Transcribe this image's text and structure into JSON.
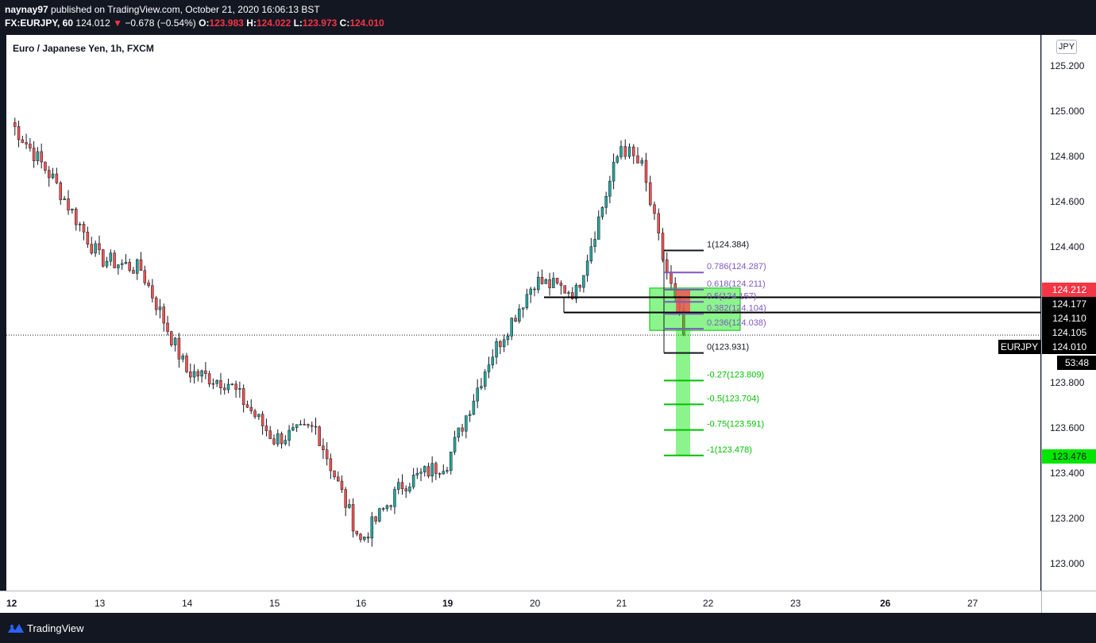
{
  "header": {
    "publisher": "naynay97",
    "published_text": "published on TradingView.com, October 21, 2020 16:06:13 BST",
    "symbol_interval": "FX:EURJPY, 60",
    "last_price": "124.012",
    "change_arrow": "▼",
    "change": "−0.678 (−0.54%)",
    "open_label": "O:",
    "open": "123.983",
    "high_label": "H:",
    "high": "124.022",
    "low_label": "L:",
    "low": "123.973",
    "close_label": "C:",
    "close": "124.010"
  },
  "chart": {
    "title": "Euro / Japanese Yen, 1h, FXCM",
    "currency": "JPY",
    "symbol_tag": "EURJPY",
    "countdown": "53:48"
  },
  "price_axis": {
    "ticks": [
      "125.200",
      "125.000",
      "124.800",
      "124.600",
      "124.400",
      "123.800",
      "123.600",
      "123.400",
      "123.200",
      "123.000"
    ],
    "labels": [
      {
        "text": "124.212",
        "bg": "#f23645",
        "fg": "#ffffff"
      },
      {
        "text": "124.177",
        "bg": "#000000",
        "fg": "#ffffff"
      },
      {
        "text": "124.110",
        "bg": "#000000",
        "fg": "#ffffff"
      },
      {
        "text": "124.105",
        "bg": "#000000",
        "fg": "#ffffff"
      },
      {
        "text": "124.010",
        "bg": "#000000",
        "fg": "#ffffff"
      },
      {
        "text": "123.476",
        "bg": "#00e600",
        "fg": "#131722"
      }
    ]
  },
  "time_axis": {
    "ticks": [
      {
        "label": "12",
        "bold": true
      },
      {
        "label": "13",
        "bold": false
      },
      {
        "label": "14",
        "bold": false
      },
      {
        "label": "15",
        "bold": false
      },
      {
        "label": "16",
        "bold": false
      },
      {
        "label": "19",
        "bold": true
      },
      {
        "label": "20",
        "bold": false
      },
      {
        "label": "21",
        "bold": false
      },
      {
        "label": "22",
        "bold": false
      },
      {
        "label": "23",
        "bold": false
      },
      {
        "label": "26",
        "bold": true
      },
      {
        "label": "27",
        "bold": false
      }
    ]
  },
  "fib": {
    "levels": [
      {
        "text": "1(124.384)",
        "price": 124.384,
        "color": "#131722"
      },
      {
        "text": "0.786(124.287)",
        "price": 124.287,
        "color": "#7e57c2"
      },
      {
        "text": "0.618(124.211)",
        "price": 124.211,
        "color": "#7e57c2"
      },
      {
        "text": "0.5(124.157)",
        "price": 124.157,
        "color": "#7e57c2"
      },
      {
        "text": "0.382(124.104)",
        "price": 124.104,
        "color": "#7e57c2"
      },
      {
        "text": "0.236(124.038)",
        "price": 124.038,
        "color": "#7e57c2"
      },
      {
        "text": "0(123.931)",
        "price": 123.931,
        "color": "#131722"
      },
      {
        "text": "-0.27(123.809)",
        "price": 123.809,
        "color": "#00c000"
      },
      {
        "text": "-0.5(123.704)",
        "price": 123.704,
        "color": "#00c000"
      },
      {
        "text": "-0.75(123.591)",
        "price": 123.591,
        "color": "#00c000"
      },
      {
        "text": "-1(123.478)",
        "price": 123.478,
        "color": "#00c000"
      }
    ],
    "horizontal_lines": [
      124.177,
      124.11
    ]
  },
  "chart_data": {
    "type": "candlestick",
    "title": "Euro / Japanese Yen, 1h, FXCM",
    "ylim": [
      122.9,
      125.3
    ],
    "x_ticks": [
      "12",
      "13",
      "14",
      "15",
      "16",
      "19",
      "20",
      "21",
      "22",
      "23",
      "26",
      "27"
    ],
    "current_price": 124.01,
    "up_color": "#26a69a",
    "down_color": "#ef5350",
    "anchors": [
      [
        "12",
        124.95
      ],
      [
        "12",
        124.7
      ],
      [
        "13",
        124.35
      ],
      [
        "13",
        124.3
      ],
      [
        "14",
        123.85
      ],
      [
        "14",
        123.8
      ],
      [
        "15",
        123.55
      ],
      [
        "15",
        123.6
      ],
      [
        "16",
        123.1
      ],
      [
        "16",
        123.35
      ],
      [
        "19",
        123.45
      ],
      [
        "19",
        123.9
      ],
      [
        "20",
        124.25
      ],
      [
        "20",
        124.2
      ],
      [
        "21",
        124.85
      ],
      [
        "21",
        124.75
      ],
      [
        "21",
        124.35
      ],
      [
        "21",
        124.03
      ]
    ]
  },
  "footer": {
    "brand": "TradingView"
  }
}
